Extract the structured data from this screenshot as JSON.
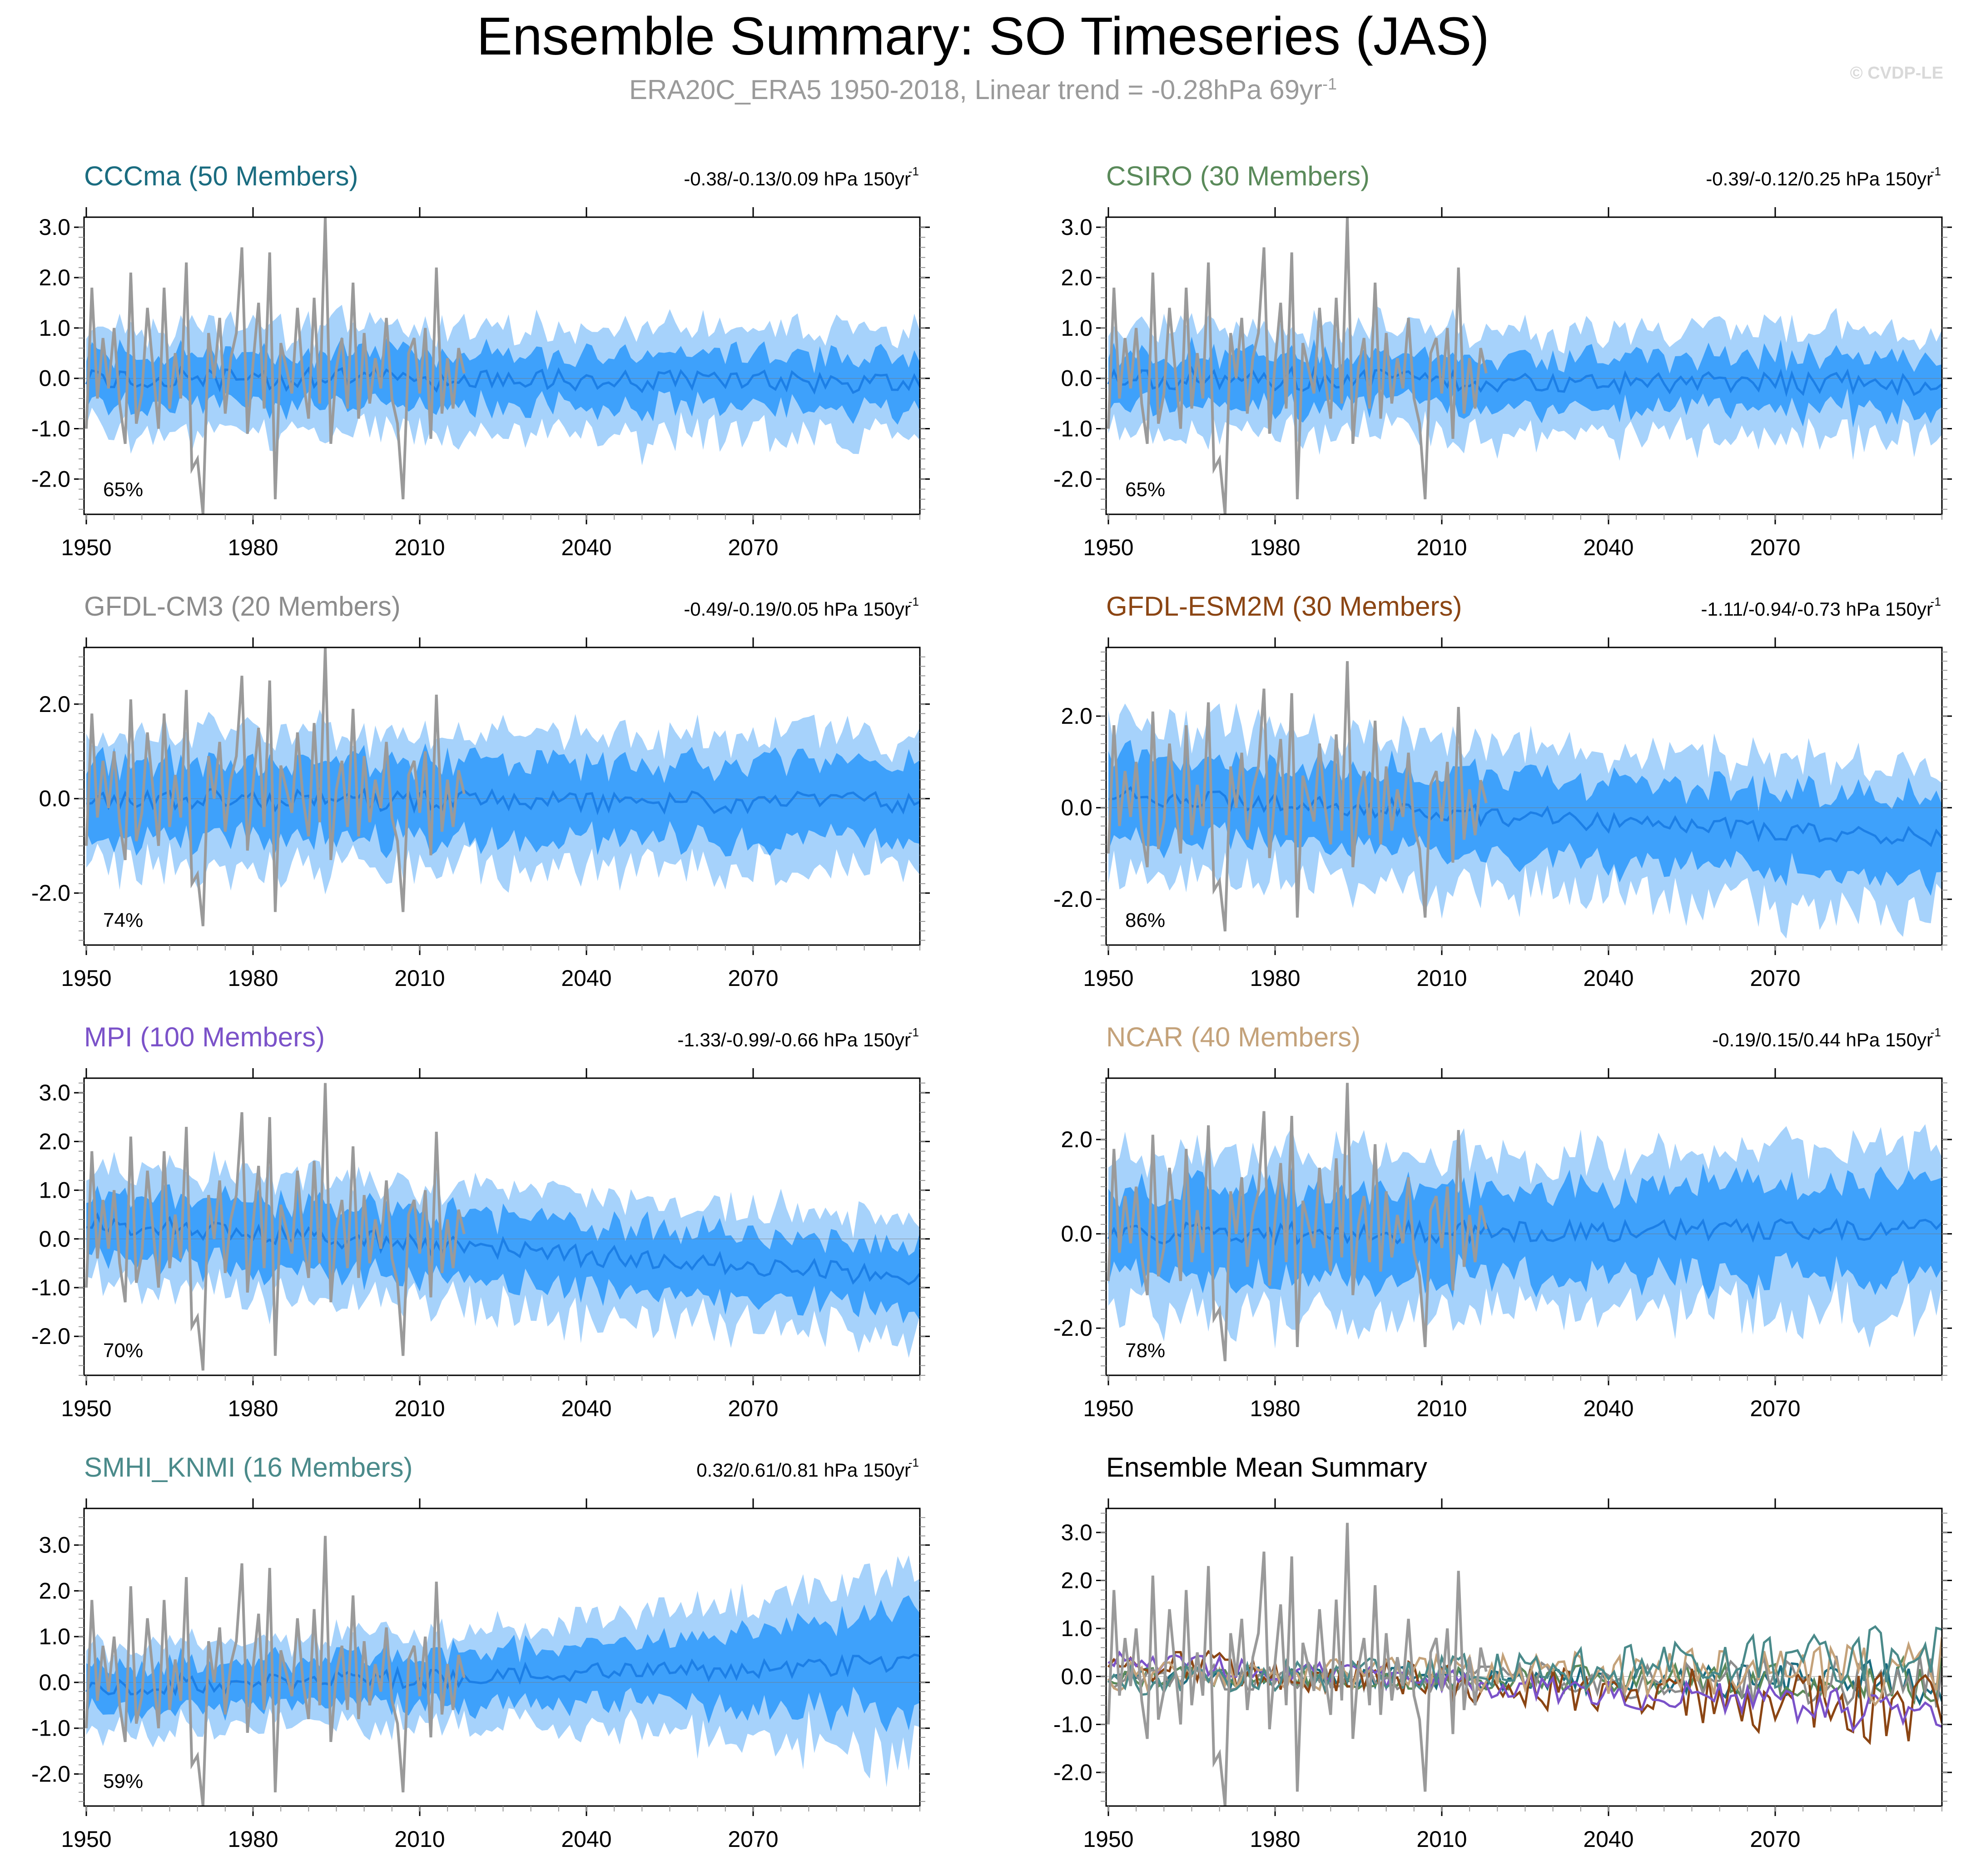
{
  "header": {
    "title": "Ensemble Summary: SO Timeseries (JAS)",
    "subtitle_main": "ERA20C_ERA5 1950-2018, Linear trend = -0.28hPa 69yr",
    "subtitle_sup": "-1",
    "copyright": "© CVDP-LE"
  },
  "colors": {
    "outer_band": "#a6d2fb",
    "inner_band": "#3ea1fb",
    "ens_mean": "#1c7fe6",
    "observed": "#9a9a9a"
  },
  "chart_data": [
    {
      "type": "area",
      "model": "CCCma",
      "title": "CCCma (50 Members)",
      "title_color": "#1a6c80",
      "trend_label": "-0.38/-0.13/0.09 hPa 150yr",
      "trend_sup": "-1",
      "pct_label": "65%",
      "ylim": [
        -2.7,
        3.2
      ],
      "yticks": [
        -2,
        -1,
        0,
        1,
        2,
        3
      ],
      "ytick_labels": [
        "-2.0",
        "-1.0",
        "0.0",
        "1.0",
        "2.0",
        "3.0"
      ],
      "xlim": [
        1950,
        2100
      ],
      "xticks": [
        1950,
        1980,
        2010,
        2040,
        2070
      ],
      "outer_spread": 1.0,
      "inner_spread": 0.5,
      "mean_start": 0.0,
      "mean_end": -0.1,
      "band_end_scale": 1.0,
      "seed": 11
    },
    {
      "type": "area",
      "model": "CSIRO",
      "title": "CSIRO (30 Members)",
      "title_color": "#5a8a5a",
      "trend_label": "-0.39/-0.12/0.25 hPa 150yr",
      "trend_sup": "-1",
      "pct_label": "65%",
      "ylim": [
        -2.7,
        3.2
      ],
      "yticks": [
        -2,
        -1,
        0,
        1,
        2,
        3
      ],
      "ytick_labels": [
        "-2.0",
        "-1.0",
        "0.0",
        "1.0",
        "2.0",
        "3.0"
      ],
      "xlim": [
        1950,
        2100
      ],
      "xticks": [
        1950,
        1980,
        2010,
        2040,
        2070
      ],
      "outer_spread": 1.0,
      "inner_spread": 0.5,
      "mean_start": 0.0,
      "mean_end": -0.1,
      "band_end_scale": 1.0,
      "seed": 23
    },
    {
      "type": "area",
      "model": "GFDL-CM3",
      "title": "GFDL-CM3 (20 Members)",
      "title_color": "#8c8c8c",
      "trend_label": "-0.49/-0.19/0.05 hPa 150yr",
      "trend_sup": "-1",
      "pct_label": "74%",
      "ylim": [
        -3.1,
        3.2
      ],
      "yticks": [
        -2,
        0,
        2
      ],
      "ytick_labels": [
        "-2.0",
        "0.0",
        "2.0"
      ],
      "xlim": [
        1950,
        2100
      ],
      "xticks": [
        1950,
        1980,
        2010,
        2040,
        2070
      ],
      "outer_spread": 1.35,
      "inner_spread": 0.8,
      "mean_start": 0.0,
      "mean_end": -0.1,
      "band_end_scale": 1.0,
      "seed": 37
    },
    {
      "type": "area",
      "model": "GFDL-ESM2M",
      "title": "GFDL-ESM2M (30 Members)",
      "title_color": "#8b4513",
      "trend_label": "-1.11/-0.94/-0.73 hPa 150yr",
      "trend_sup": "-1",
      "pct_label": "86%",
      "ylim": [
        -3.0,
        3.5
      ],
      "yticks": [
        -2,
        0,
        2
      ],
      "ytick_labels": [
        "-2.0",
        "0.0",
        "2.0"
      ],
      "xlim": [
        1950,
        2100
      ],
      "xticks": [
        1950,
        1980,
        2010,
        2040,
        2070
      ],
      "outer_spread": 1.5,
      "inner_spread": 0.85,
      "mean_start": 0.3,
      "mean_end": -0.7,
      "band_end_scale": 1.0,
      "seed": 41
    },
    {
      "type": "area",
      "model": "MPI",
      "title": "MPI (100 Members)",
      "title_color": "#7b52c9",
      "trend_label": "-1.33/-0.99/-0.66 hPa 150yr",
      "trend_sup": "-1",
      "pct_label": "70%",
      "ylim": [
        -2.8,
        3.3
      ],
      "yticks": [
        -2,
        -1,
        0,
        1,
        2,
        3
      ],
      "ytick_labels": [
        "-2.0",
        "-1.0",
        "0.0",
        "1.0",
        "2.0",
        "3.0"
      ],
      "xlim": [
        1950,
        2100
      ],
      "xticks": [
        1950,
        1980,
        2010,
        2040,
        2070
      ],
      "outer_spread": 1.2,
      "inner_spread": 0.65,
      "mean_start": 0.35,
      "mean_end": -0.8,
      "band_end_scale": 1.0,
      "seed": 53
    },
    {
      "type": "area",
      "model": "NCAR",
      "title": "NCAR (40 Members)",
      "title_color": "#c4a27a",
      "trend_label": "-0.19/0.15/0.44 hPa 150yr",
      "trend_sup": "-1",
      "pct_label": "78%",
      "ylim": [
        -3.0,
        3.3
      ],
      "yticks": [
        -2,
        0,
        2
      ],
      "ytick_labels": [
        "-2.0",
        "0.0",
        "2.0"
      ],
      "xlim": [
        1950,
        2100
      ],
      "xticks": [
        1950,
        1980,
        2010,
        2040,
        2070
      ],
      "outer_spread": 1.6,
      "inner_spread": 0.95,
      "mean_start": 0.0,
      "mean_end": 0.1,
      "band_end_scale": 1.0,
      "seed": 67
    },
    {
      "type": "area",
      "model": "SMHI_KNMI",
      "title": "SMHI_KNMI (16 Members)",
      "title_color": "#4a8a8a",
      "trend_label": "0.32/0.61/0.81 hPa 150yr",
      "trend_sup": "-1",
      "pct_label": "59%",
      "ylim": [
        -2.7,
        3.8
      ],
      "yticks": [
        -2,
        -1,
        0,
        1,
        2,
        3
      ],
      "ytick_labels": [
        "-2.0",
        "-1.0",
        "0.0",
        "1.0",
        "2.0",
        "3.0"
      ],
      "xlim": [
        1950,
        2100
      ],
      "xticks": [
        1950,
        1980,
        2010,
        2040,
        2070
      ],
      "outer_spread": 0.9,
      "inner_spread": 0.5,
      "mean_start": -0.1,
      "mean_end": 0.4,
      "band_end_scale": 2.2,
      "seed": 79
    },
    {
      "type": "line",
      "model": "summary",
      "title": "Ensemble Mean Summary",
      "title_color": "#000000",
      "ylim": [
        -2.7,
        3.5
      ],
      "yticks": [
        -2,
        -1,
        0,
        1,
        2,
        3
      ],
      "ytick_labels": [
        "-2.0",
        "-1.0",
        "0.0",
        "1.0",
        "2.0",
        "3.0"
      ],
      "xlim": [
        1950,
        2100
      ],
      "xticks": [
        1950,
        1980,
        2010,
        2040,
        2070
      ],
      "series": [
        {
          "name": "CCCma",
          "color": "#1a6c80",
          "mean_start": 0.0,
          "mean_end": -0.1,
          "amp": 0.2,
          "seed": 11
        },
        {
          "name": "CSIRO",
          "color": "#5a8a5a",
          "mean_start": 0.0,
          "mean_end": -0.1,
          "amp": 0.2,
          "seed": 23
        },
        {
          "name": "GFDL-CM3",
          "color": "#8c8c8c",
          "mean_start": 0.0,
          "mean_end": -0.1,
          "amp": 0.25,
          "seed": 37
        },
        {
          "name": "GFDL-ESM2M",
          "color": "#8b4513",
          "mean_start": 0.3,
          "mean_end": -0.7,
          "amp": 0.35,
          "seed": 41
        },
        {
          "name": "MPI",
          "color": "#7b52c9",
          "mean_start": 0.35,
          "mean_end": -0.8,
          "amp": 0.2,
          "seed": 53
        },
        {
          "name": "NCAR",
          "color": "#c4a27a",
          "mean_start": 0.0,
          "mean_end": 0.1,
          "amp": 0.3,
          "seed": 67
        },
        {
          "name": "SMHI_KNMI",
          "color": "#4a8a8a",
          "mean_start": -0.1,
          "mean_end": 0.4,
          "amp": 0.3,
          "seed": 79
        }
      ]
    }
  ],
  "observed": {
    "name": "ERA20C_ERA5",
    "years": [
      1950,
      2018
    ],
    "values": [
      -1.0,
      1.8,
      -0.4,
      0.8,
      -0.2,
      1.0,
      -0.5,
      -1.3,
      2.1,
      -0.9,
      -0.3,
      1.4,
      0.2,
      -1.0,
      1.8,
      -0.6,
      0.5,
      -0.4,
      2.3,
      -1.8,
      -1.6,
      -2.7,
      0.9,
      0.0,
      1.2,
      -0.7,
      0.4,
      0.9,
      2.6,
      -1.1,
      0.3,
      1.5,
      -0.6,
      2.5,
      -2.4,
      0.7,
      0.2,
      -0.3,
      1.4,
      0.0,
      -0.8,
      1.6,
      -0.5,
      3.2,
      -1.3,
      0.2,
      0.8,
      -0.6,
      1.9,
      -0.8,
      0.9,
      -0.5,
      0.4,
      -0.2,
      1.2,
      -0.4,
      -0.9,
      -2.4,
      0.5,
      0.8,
      -0.3,
      1.0,
      -1.2,
      2.2,
      -0.7,
      0.4,
      -0.6,
      0.6,
      0.1
    ]
  }
}
